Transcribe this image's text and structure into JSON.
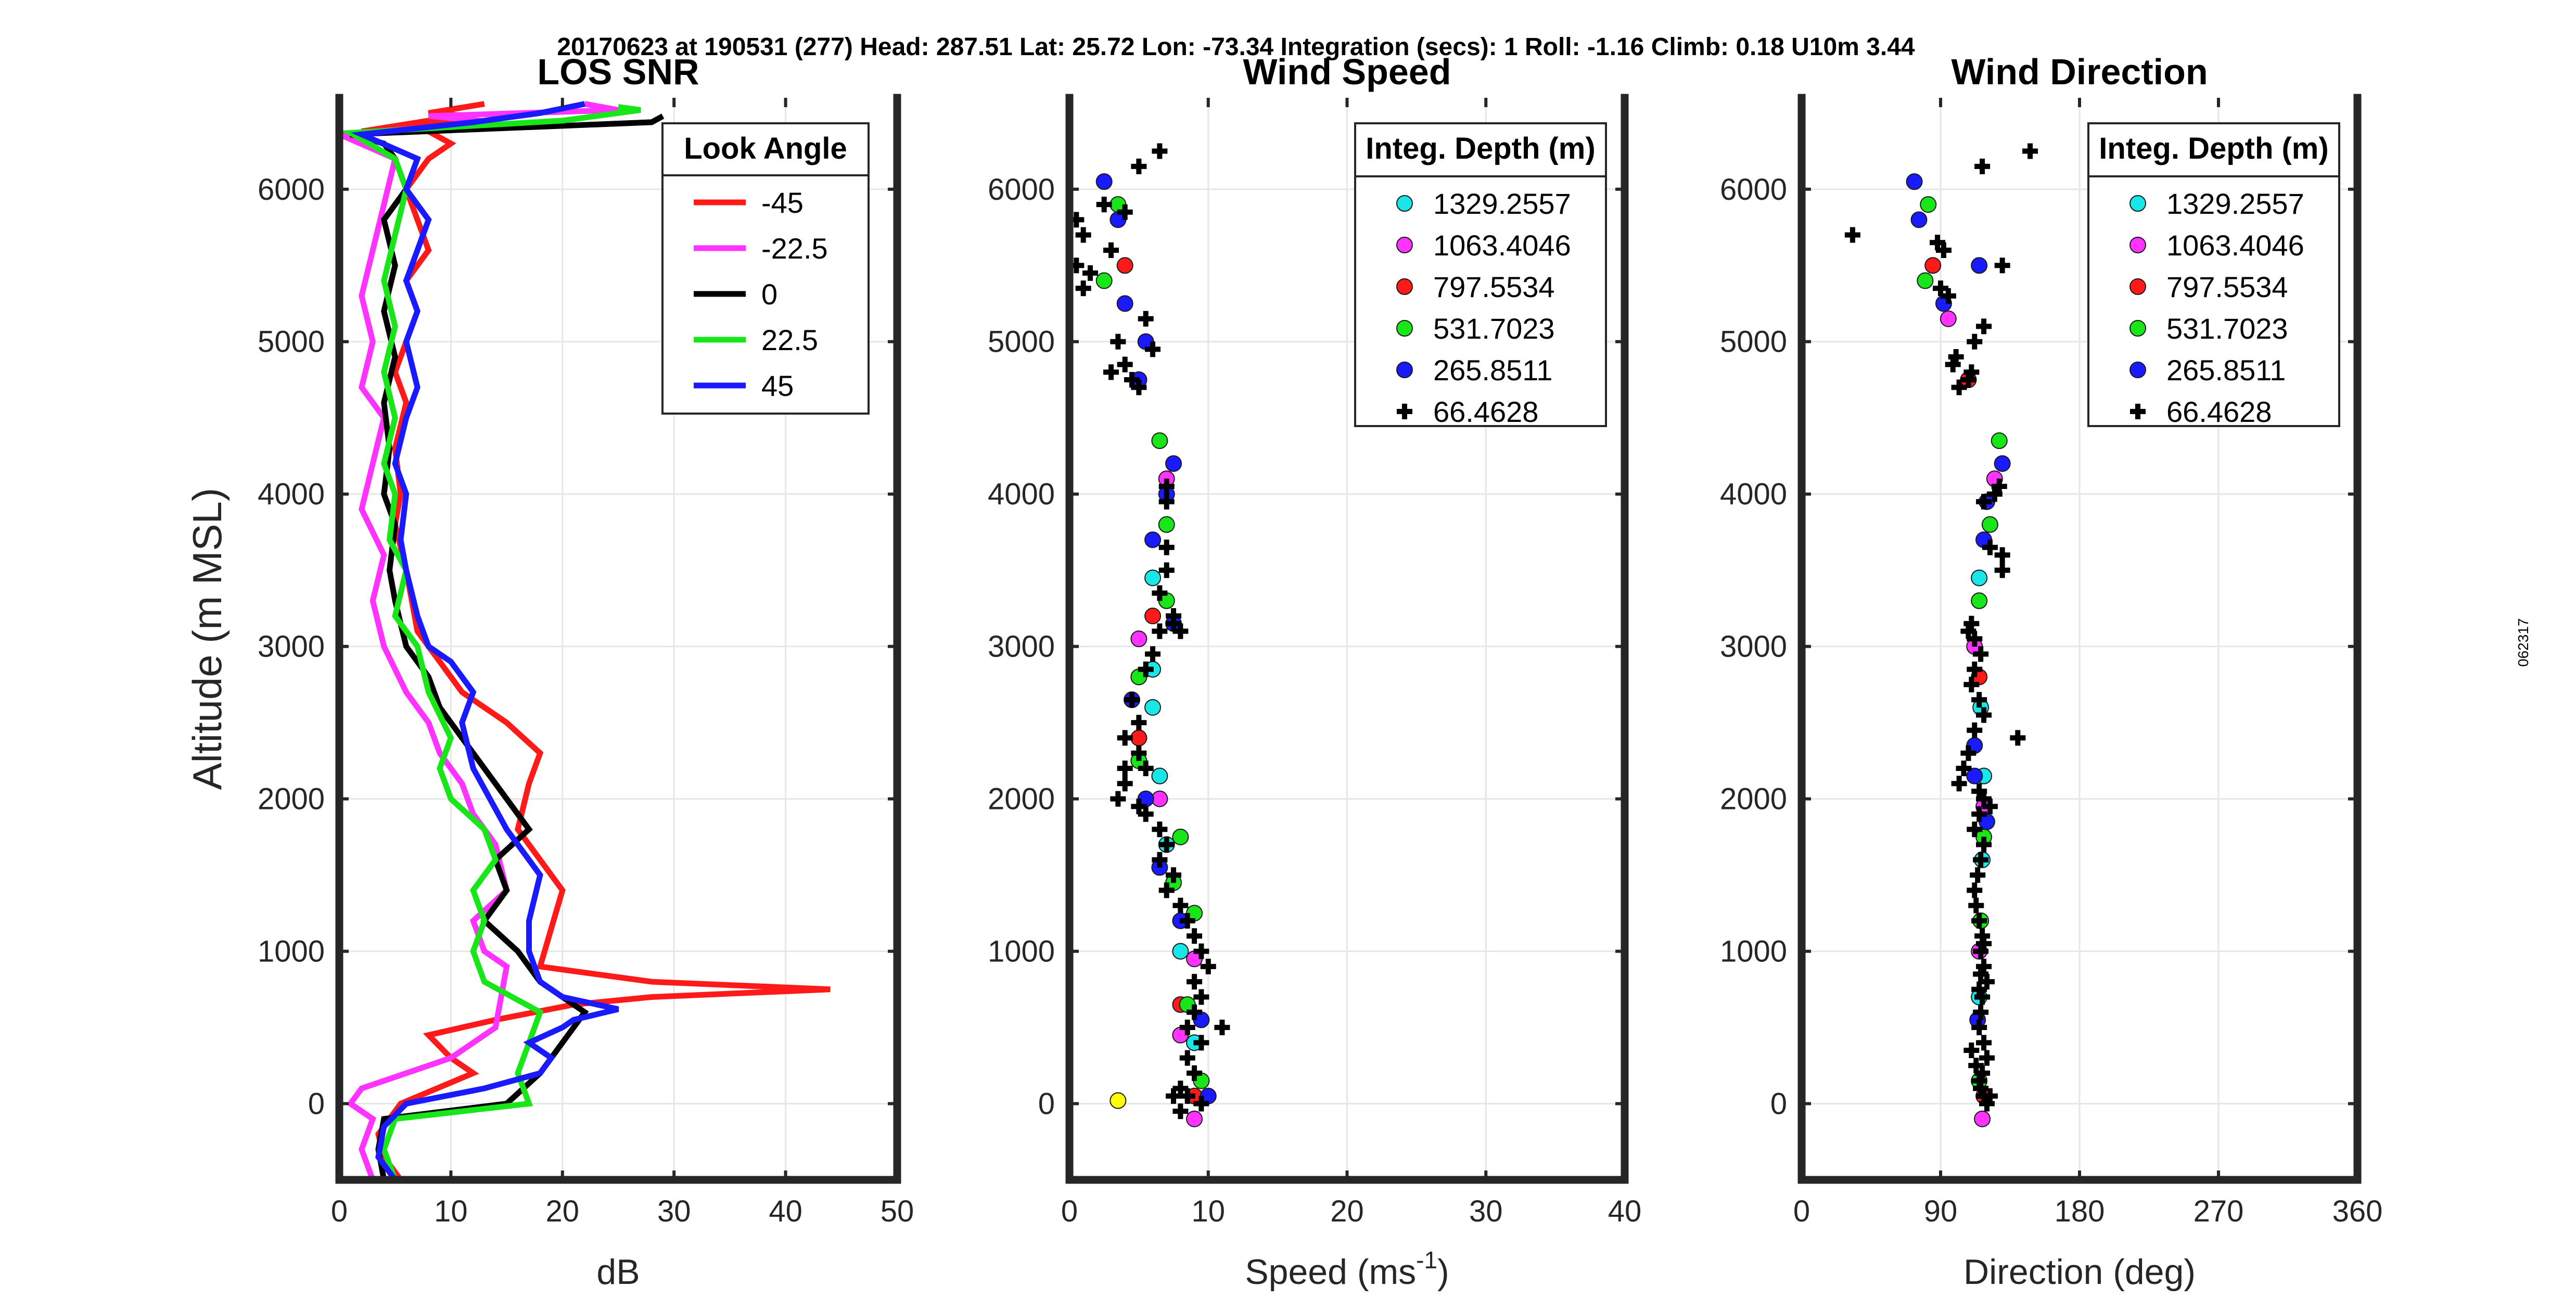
{
  "suptitle": "20170623 at 190531 (277)  Head: 287.51  Lat: 25.72  Lon: -73.34  Integration (secs): 1  Roll: -1.16  Climb: 0.18  U10m 3.44",
  "side_label": "062317",
  "colors": {
    "cyan": "#19e6e6",
    "magenta": "#ff33ff",
    "red": "#ff1a1a",
    "green": "#19e619",
    "blue": "#1a1aff",
    "black": "#000000",
    "yellow": "#ffff00"
  },
  "chart_data": [
    {
      "type": "line",
      "title": "LOS SNR",
      "xlabel": "dB",
      "ylabel": "Altitude (m MSL)",
      "xlim": [
        0,
        50
      ],
      "ylim": [
        -500,
        6600
      ],
      "xticks": [
        0,
        10,
        20,
        30,
        40,
        50
      ],
      "xtick_labels": [
        "0",
        "10",
        "20",
        "30",
        "40",
        "50"
      ],
      "yticks": [
        0,
        1000,
        2000,
        3000,
        4000,
        5000,
        6000
      ],
      "ytick_labels": [
        "0",
        "1000",
        "2000",
        "3000",
        "4000",
        "5000",
        "6000"
      ],
      "grid": true,
      "legend": {
        "title": "Look Angle",
        "position": "top-right"
      },
      "series": [
        {
          "name": "-45",
          "color": "#ff1a1a",
          "x": [
            5.5,
            4,
            3.5,
            5.5,
            12,
            10,
            8,
            14,
            21,
            28,
            44,
            28,
            18,
            20,
            16,
            17,
            18,
            15,
            11,
            9,
            7,
            6,
            5,
            5.5,
            5,
            6,
            5,
            6,
            7,
            6,
            8,
            7,
            6,
            8,
            10,
            8,
            9,
            7,
            9,
            8,
            2,
            12,
            8,
            13
          ],
          "y": [
            -500,
            -350,
            -200,
            0,
            200,
            300,
            450,
            550,
            650,
            700,
            750,
            800,
            900,
            1400,
            1800,
            2100,
            2300,
            2500,
            2700,
            2900,
            3100,
            3500,
            3800,
            4000,
            4300,
            4600,
            4800,
            5000,
            5200,
            5400,
            5600,
            5800,
            6000,
            6200,
            6300,
            6380,
            6400,
            6420,
            6440,
            6450,
            6380,
            6480,
            6500,
            6560
          ]
        },
        {
          "name": "-22.5",
          "color": "#ff33ff",
          "x": [
            3,
            2,
            3,
            1,
            2,
            6,
            10,
            14,
            15,
            13,
            12,
            15,
            14,
            12,
            11,
            9,
            8,
            6,
            4,
            3,
            4,
            2,
            3,
            4,
            2,
            3,
            2,
            3,
            4,
            5,
            0,
            14,
            8,
            25,
            22
          ],
          "y": [
            -500,
            -300,
            -100,
            0,
            100,
            200,
            300,
            500,
            900,
            1000,
            1200,
            1400,
            1700,
            1900,
            2100,
            2300,
            2500,
            2700,
            3000,
            3300,
            3600,
            3900,
            4200,
            4500,
            4700,
            5000,
            5300,
            5600,
            5900,
            6200,
            6360,
            6440,
            6480,
            6520,
            6560
          ]
        },
        {
          "name": "0",
          "color": "#000000",
          "x": [
            4,
            3.5,
            4,
            15,
            18,
            20,
            22,
            18,
            16,
            13,
            15,
            14,
            17,
            15,
            13,
            11,
            9,
            8,
            6,
            5,
            4.5,
            5,
            4,
            4.5,
            4,
            5,
            4,
            5,
            4,
            6,
            5,
            4,
            1,
            28,
            29
          ],
          "y": [
            -500,
            -300,
            -100,
            0,
            200,
            400,
            600,
            800,
            1000,
            1200,
            1400,
            1600,
            1800,
            2000,
            2200,
            2400,
            2600,
            2800,
            3000,
            3300,
            3500,
            3800,
            4000,
            4300,
            4600,
            4900,
            5200,
            5500,
            5800,
            6000,
            6200,
            6300,
            6360,
            6440,
            6480
          ]
        },
        {
          "name": "22.5",
          "color": "#19e619",
          "x": [
            5,
            4,
            5,
            17,
            16,
            17,
            18,
            13,
            12,
            13,
            12,
            14,
            13,
            10,
            9,
            10,
            8,
            7,
            5,
            6,
            4.5,
            5,
            4,
            5,
            4,
            5,
            4,
            5,
            6,
            5,
            1,
            20,
            27,
            25
          ],
          "y": [
            -500,
            -300,
            -100,
            0,
            200,
            400,
            600,
            800,
            1000,
            1200,
            1400,
            1600,
            1800,
            2000,
            2200,
            2400,
            2700,
            3000,
            3200,
            3500,
            3700,
            4000,
            4200,
            4500,
            4800,
            5100,
            5400,
            5700,
            6000,
            6200,
            6370,
            6450,
            6520,
            6540
          ]
        },
        {
          "name": "45",
          "color": "#1a1aff",
          "x": [
            5,
            3.5,
            4,
            6,
            13,
            18,
            19,
            17,
            20,
            21,
            25,
            20,
            18,
            17,
            17,
            18,
            15,
            12,
            11,
            12,
            10,
            8,
            7,
            6,
            5.5,
            6,
            5,
            6,
            7,
            6,
            7,
            6,
            7,
            8,
            6,
            7,
            2,
            12,
            18,
            22
          ],
          "y": [
            -500,
            -350,
            -150,
            0,
            100,
            200,
            300,
            400,
            500,
            550,
            620,
            700,
            800,
            1000,
            1200,
            1500,
            1800,
            2200,
            2500,
            2700,
            2900,
            3000,
            3200,
            3500,
            3700,
            4000,
            4200,
            4500,
            4700,
            5000,
            5200,
            5400,
            5600,
            5800,
            6000,
            6200,
            6360,
            6440,
            6500,
            6560
          ]
        }
      ]
    },
    {
      "type": "scatter",
      "title": "Wind Speed",
      "xlabel": "Speed (ms",
      "xlabel_sup": "-1",
      "xlabel_end": ")",
      "xlim": [
        0,
        40
      ],
      "ylim": [
        -500,
        6600
      ],
      "xticks": [
        0,
        10,
        20,
        30,
        40
      ],
      "xtick_labels": [
        "0",
        "10",
        "20",
        "30",
        "40"
      ],
      "yticks": [
        0,
        1000,
        2000,
        3000,
        4000,
        5000,
        6000
      ],
      "ytick_labels": [
        "0",
        "1000",
        "2000",
        "3000",
        "4000",
        "5000",
        "6000"
      ],
      "grid": true,
      "legend": {
        "title": "Integ. Depth (m)",
        "position": "top-right"
      },
      "series": [
        {
          "name": "1329.2557",
          "color": "#19e6e6",
          "marker": "circle",
          "x": [
            5,
            6,
            6.5,
            5,
            6,
            7,
            8,
            9,
            6
          ],
          "y": [
            4750,
            3450,
            2150,
            2400,
            2600,
            1700,
            1000,
            400,
            2850
          ]
        },
        {
          "name": "1063.4046",
          "color": "#ff33ff",
          "marker": "circle",
          "x": [
            7,
            5,
            5,
            6.5,
            9,
            9,
            8
          ],
          "y": [
            4100,
            3050,
            2800,
            2000,
            950,
            -100,
            450
          ]
        },
        {
          "name": "797.5534",
          "color": "#ff1a1a",
          "marker": "circle",
          "x": [
            4,
            5,
            6,
            5,
            9,
            8
          ],
          "y": [
            5500,
            4750,
            3200,
            2400,
            50,
            650
          ]
        },
        {
          "name": "531.7023",
          "color": "#19e619",
          "marker": "circle",
          "x": [
            3.5,
            2.5,
            6.5,
            7,
            7,
            5,
            5,
            8,
            9,
            9.5,
            8.5,
            7.5
          ],
          "y": [
            5900,
            5400,
            4350,
            3800,
            3300,
            2800,
            2250,
            1750,
            1250,
            150,
            650,
            1450
          ]
        },
        {
          "name": "265.8511",
          "color": "#1a1aff",
          "marker": "circle",
          "x": [
            2.5,
            3.5,
            4,
            5.5,
            7,
            7.5,
            5,
            6,
            4.5,
            6.5,
            8,
            10,
            9.5,
            7.5,
            5.5
          ],
          "y": [
            6050,
            5800,
            5250,
            5000,
            4000,
            4200,
            4750,
            3700,
            2650,
            1550,
            1200,
            50,
            550,
            3150,
            2000
          ]
        },
        {
          "name": "66.4628",
          "color": "#000000",
          "marker": "plus",
          "x": [
            1,
            2.5,
            5,
            6.5,
            3,
            4,
            1.5,
            0.5,
            5.5,
            4,
            6,
            4.5,
            3.5,
            7,
            7,
            6.5,
            7.5,
            6.5,
            7,
            7,
            7.5,
            8,
            6,
            5.5,
            4.5,
            5,
            4,
            5,
            5.5,
            4,
            3.5,
            5,
            5.5,
            6.5,
            7,
            6.5,
            7.5,
            7,
            8,
            8.5,
            9,
            9.5,
            10,
            9,
            9.5,
            9,
            8.5,
            9.5,
            11,
            8.5,
            9,
            8,
            8.5,
            9.5,
            8,
            7.5,
            3,
            1,
            0.5,
            5,
            4
          ],
          "y": [
            5700,
            5900,
            6150,
            6250,
            5600,
            5850,
            5450,
            5800,
            5150,
            4850,
            4950,
            4750,
            5000,
            3950,
            3650,
            3350,
            3150,
            3100,
            4050,
            3500,
            3200,
            3100,
            2950,
            2850,
            2650,
            2500,
            2400,
            2300,
            2200,
            2100,
            2000,
            1950,
            1900,
            1800,
            1700,
            1600,
            1500,
            1400,
            1300,
            1200,
            1100,
            1000,
            900,
            800,
            700,
            600,
            500,
            400,
            500,
            300,
            200,
            100,
            50,
            0,
            -50,
            50,
            4800,
            5350,
            5500,
            4700,
            2200
          ]
        },
        {
          "name": "",
          "color": "#ffff00",
          "marker": "circle",
          "x": [
            3.5
          ],
          "y": [
            20
          ]
        }
      ]
    },
    {
      "type": "scatter",
      "title": "Wind Direction",
      "xlabel": "Direction (deg)",
      "xlim": [
        0,
        360
      ],
      "ylim": [
        -500,
        6600
      ],
      "xticks": [
        0,
        90,
        180,
        270,
        360
      ],
      "xtick_labels": [
        "0",
        "90",
        "180",
        "270",
        "360"
      ],
      "yticks": [
        0,
        1000,
        2000,
        3000,
        4000,
        5000,
        6000
      ],
      "ytick_labels": [
        "0",
        "1000",
        "2000",
        "3000",
        "4000",
        "5000",
        "6000"
      ],
      "grid": true,
      "legend": {
        "title": "Integ. Depth (m)",
        "position": "top-right"
      },
      "series": [
        {
          "name": "1329.2557",
          "color": "#19e6e6",
          "marker": "circle",
          "x": [
            108,
            115,
            118,
            116,
            117,
            115
          ],
          "y": [
            4750,
            3450,
            2150,
            2600,
            1600,
            700
          ]
        },
        {
          "name": "1063.4046",
          "color": "#ff33ff",
          "marker": "circle",
          "x": [
            95,
            125,
            112,
            118,
            115,
            117
          ],
          "y": [
            5150,
            4100,
            3000,
            1950,
            1000,
            -100
          ]
        },
        {
          "name": "797.5534",
          "color": "#ff1a1a",
          "marker": "circle",
          "x": [
            85,
            108,
            115,
            118
          ],
          "y": [
            5500,
            4750,
            2800,
            50
          ]
        },
        {
          "name": "531.7023",
          "color": "#19e619",
          "marker": "circle",
          "x": [
            82,
            80,
            128,
            122,
            115,
            118,
            116,
            115
          ],
          "y": [
            5900,
            5400,
            4350,
            3800,
            3300,
            1750,
            1200,
            150
          ]
        },
        {
          "name": "265.8511",
          "color": "#1a1aff",
          "marker": "circle",
          "x": [
            73,
            76,
            92,
            115,
            120,
            130,
            118,
            112,
            112,
            120,
            114
          ],
          "y": [
            6050,
            5800,
            5250,
            5500,
            3950,
            4200,
            3700,
            2350,
            2150,
            1850,
            550
          ]
        },
        {
          "name": "66.4628",
          "color": "#000000",
          "marker": "plus",
          "x": [
            117,
            148,
            33,
            88,
            92,
            130,
            118,
            90,
            95,
            100,
            98,
            110,
            112,
            108,
            102,
            118,
            122,
            130,
            125,
            128,
            130,
            110,
            108,
            112,
            116,
            112,
            110,
            115,
            118,
            112,
            108,
            105,
            102,
            115,
            118,
            122,
            140,
            115,
            112,
            118,
            116,
            114,
            112,
            113,
            115,
            117,
            116,
            118,
            120,
            117,
            116,
            115,
            118,
            120,
            117,
            116,
            110,
            113,
            115,
            118,
            120,
            122,
            118,
            116,
            115
          ],
          "y": [
            6150,
            6250,
            5700,
            5650,
            5600,
            5500,
            5100,
            5350,
            5300,
            4900,
            4850,
            4800,
            5000,
            4750,
            4700,
            3950,
            3650,
            3500,
            4000,
            4050,
            3600,
            3150,
            3100,
            3050,
            2950,
            2850,
            2750,
            2650,
            2550,
            2450,
            2300,
            2200,
            2100,
            2050,
            2000,
            1950,
            2400,
            1900,
            1800,
            1700,
            1600,
            1500,
            1400,
            1300,
            1200,
            1100,
            1000,
            900,
            800,
            700,
            600,
            500,
            400,
            300,
            200,
            100,
            350,
            250,
            150,
            50,
            0,
            50,
            1050,
            850,
            750
          ]
        }
      ]
    }
  ]
}
